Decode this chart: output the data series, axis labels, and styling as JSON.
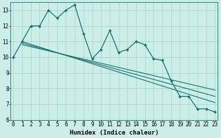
{
  "x": [
    0,
    1,
    2,
    3,
    4,
    5,
    6,
    7,
    8,
    9,
    10,
    11,
    12,
    13,
    14,
    15,
    16,
    17,
    18,
    19,
    20,
    21,
    22,
    23
  ],
  "y": [
    10,
    11,
    12,
    12,
    13,
    12.5,
    13,
    13.35,
    11.5,
    9.9,
    10.5,
    11.7,
    10.3,
    10.5,
    11.0,
    10.8,
    9.9,
    9.8,
    8.5,
    7.5,
    7.5,
    6.7,
    6.7,
    6.5
  ],
  "trend_lines": [
    {
      "x0": 1,
      "y0": 11.0,
      "x1": 23,
      "y1": 7.1
    },
    {
      "x0": 1,
      "y0": 10.9,
      "x1": 23,
      "y1": 7.5
    },
    {
      "x0": 1,
      "y0": 10.8,
      "x1": 23,
      "y1": 7.9
    }
  ],
  "bg_color": "#cceee8",
  "grid_color": "#aad8d0",
  "line_color": "#1a7070",
  "xlim": [
    -0.3,
    23.3
  ],
  "ylim": [
    6.0,
    13.5
  ],
  "yticks": [
    6,
    7,
    8,
    9,
    10,
    11,
    12,
    13
  ],
  "xticks": [
    0,
    1,
    2,
    3,
    4,
    5,
    6,
    7,
    8,
    9,
    10,
    11,
    12,
    13,
    14,
    15,
    16,
    17,
    18,
    19,
    20,
    21,
    22,
    23
  ],
  "xlabel": "Humidex (Indice chaleur)",
  "xlabel_fontsize": 6.5,
  "tick_fontsize": 5.5
}
